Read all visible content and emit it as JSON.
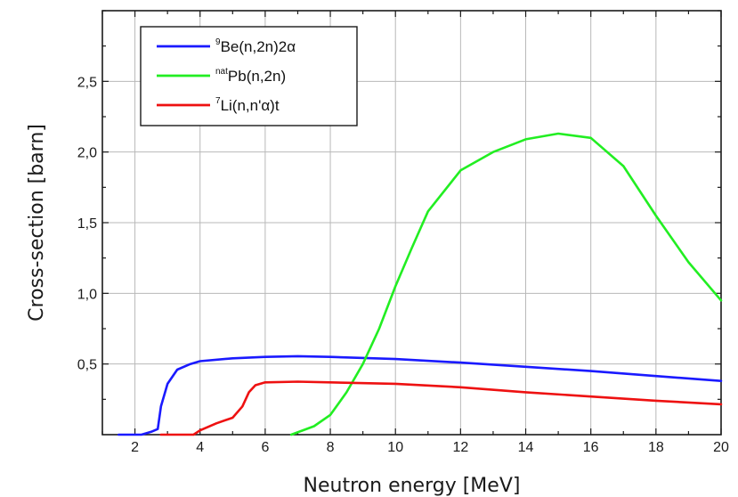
{
  "chart_data": {
    "type": "line",
    "xlabel": "Neutron energy [MeV]",
    "ylabel": "Cross-section [barn]",
    "xlim": [
      1,
      20
    ],
    "ylim": [
      0,
      3.0
    ],
    "x_ticks": [
      2,
      4,
      6,
      8,
      10,
      12,
      14,
      16,
      18,
      20
    ],
    "x_tick_labels": [
      "2",
      "4",
      "6",
      "8",
      "10",
      "12",
      "14",
      "16",
      "18",
      "20"
    ],
    "y_ticks": [
      0.5,
      1.0,
      1.5,
      2.0,
      2.5
    ],
    "y_tick_labels": [
      "0,5",
      "1,0",
      "1,5",
      "2,0",
      "2,5"
    ],
    "grid": true,
    "legend_position": "top-left",
    "series": [
      {
        "name": "9Be(n,2n)2α",
        "legend_sup": "9",
        "legend_main": "Be(n,2n)2α",
        "color": "#1a1aff",
        "x": [
          1.5,
          2.2,
          2.5,
          2.7,
          2.8,
          3.0,
          3.3,
          3.7,
          4.0,
          5.0,
          6.0,
          7.0,
          8.0,
          10.0,
          12.0,
          14.0,
          16.0,
          18.0,
          20.0
        ],
        "y": [
          0.0,
          0.0,
          0.02,
          0.04,
          0.2,
          0.36,
          0.46,
          0.5,
          0.52,
          0.54,
          0.55,
          0.555,
          0.55,
          0.535,
          0.51,
          0.48,
          0.45,
          0.415,
          0.38
        ]
      },
      {
        "name": "natPb(n,2n)",
        "legend_sup": "nat",
        "legend_main": "Pb(n,2n)",
        "color": "#22ee22",
        "x": [
          6.8,
          7.5,
          8.0,
          8.5,
          9.0,
          9.5,
          10.0,
          10.5,
          11.0,
          12.0,
          13.0,
          14.0,
          15.0,
          16.0,
          17.0,
          18.0,
          19.0,
          20.0
        ],
        "y": [
          0.0,
          0.06,
          0.14,
          0.3,
          0.5,
          0.75,
          1.05,
          1.32,
          1.58,
          1.87,
          2.0,
          2.09,
          2.13,
          2.1,
          1.9,
          1.55,
          1.22,
          0.95
        ]
      },
      {
        "name": "7Li(n,n'α)t",
        "legend_sup": "7",
        "legend_main": "Li(n,n'α)t",
        "color": "#ee1111",
        "x": [
          2.8,
          3.8,
          4.0,
          4.5,
          5.0,
          5.3,
          5.5,
          5.7,
          6.0,
          7.0,
          8.0,
          10.0,
          12.0,
          14.0,
          16.0,
          18.0,
          20.0
        ],
        "y": [
          0.0,
          0.0,
          0.03,
          0.08,
          0.12,
          0.2,
          0.3,
          0.35,
          0.37,
          0.375,
          0.37,
          0.36,
          0.335,
          0.3,
          0.27,
          0.24,
          0.215
        ]
      }
    ]
  }
}
